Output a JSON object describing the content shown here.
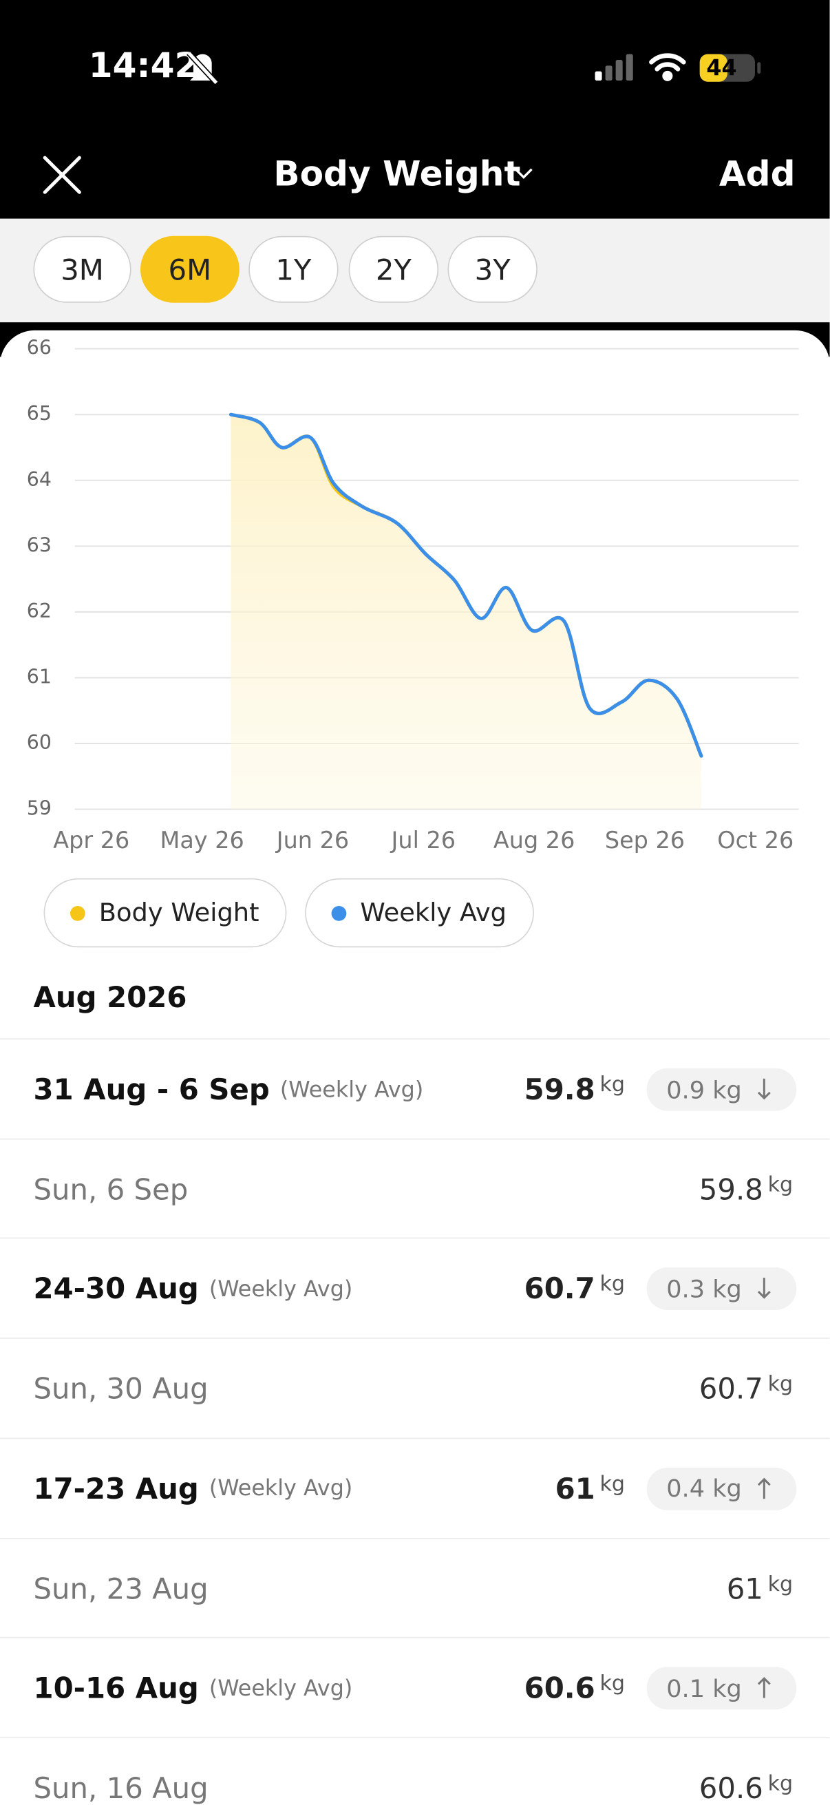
{
  "status_bar": {
    "time": "14:42",
    "battery": "44"
  },
  "header": {
    "title": "Body Weight",
    "action": "Add"
  },
  "range_tabs": [
    "3M",
    "6M",
    "1Y",
    "2Y",
    "3Y"
  ],
  "selected_tab": 1,
  "chart_data": {
    "type": "line",
    "x": [
      1.26,
      1.52,
      1.72,
      1.98,
      2.19,
      2.45,
      2.76,
      3.02,
      3.28,
      3.52,
      3.75,
      3.98,
      4.27,
      4.5,
      4.79,
      5.03,
      5.29,
      5.51
    ],
    "series": [
      {
        "name": "Body Weight",
        "color": "#f5c518",
        "values": [
          65.0,
          64.88,
          64.5,
          64.65,
          63.9,
          63.6,
          63.35,
          62.88,
          62.48,
          61.9,
          62.37,
          61.72,
          61.86,
          60.54,
          60.63,
          60.96,
          60.68,
          59.81
        ]
      },
      {
        "name": "Weekly Avg",
        "color": "#3b8fe8",
        "values": [
          65.0,
          64.88,
          64.5,
          64.65,
          63.95,
          63.6,
          63.35,
          62.88,
          62.48,
          61.9,
          62.37,
          61.72,
          61.86,
          60.54,
          60.63,
          60.96,
          60.68,
          59.81
        ]
      }
    ],
    "xlim": [
      -0.15,
      6.39
    ],
    "xticks": [
      {
        "value": 0,
        "label": "Apr 26"
      },
      {
        "value": 1,
        "label": "May 26"
      },
      {
        "value": 2,
        "label": "Jun 26"
      },
      {
        "value": 3,
        "label": "Jul 26"
      },
      {
        "value": 4,
        "label": "Aug 26"
      },
      {
        "value": 5,
        "label": "Sep 26"
      },
      {
        "value": 6,
        "label": "Oct 26"
      }
    ],
    "ylim": [
      59,
      66
    ],
    "yticks": [
      59,
      60,
      61,
      62,
      63,
      64,
      65,
      66
    ],
    "grid": true,
    "area": true
  },
  "list": {
    "month": "Aug 2026",
    "rows": [
      {
        "label": "31 Aug - 6 Sep",
        "note": "(Weekly Avg)",
        "value": 59.8,
        "unit": "kg",
        "change": "0.9 kg",
        "direction": "down"
      },
      {
        "label": "Sun, 6 Sep",
        "value": 59.8,
        "unit": "kg"
      },
      {
        "label": "24-30 Aug",
        "note": "(Weekly Avg)",
        "value": 60.7,
        "unit": "kg",
        "change": "0.3 kg",
        "direction": "down"
      },
      {
        "label": "Sun, 30 Aug",
        "value": 60.7,
        "unit": "kg"
      },
      {
        "label": "17-23 Aug",
        "note": "(Weekly Avg)",
        "value": 61,
        "unit": "kg",
        "change": "0.4 kg",
        "direction": "up"
      },
      {
        "label": "Sun, 23 Aug",
        "value": 61,
        "unit": "kg"
      },
      {
        "label": "10-16 Aug",
        "note": "(Weekly Avg)",
        "value": 60.6,
        "unit": "kg",
        "change": "0.1 kg",
        "direction": "up"
      },
      {
        "label": "Sun, 16 Aug",
        "value": 60.6,
        "unit": "kg"
      }
    ]
  }
}
